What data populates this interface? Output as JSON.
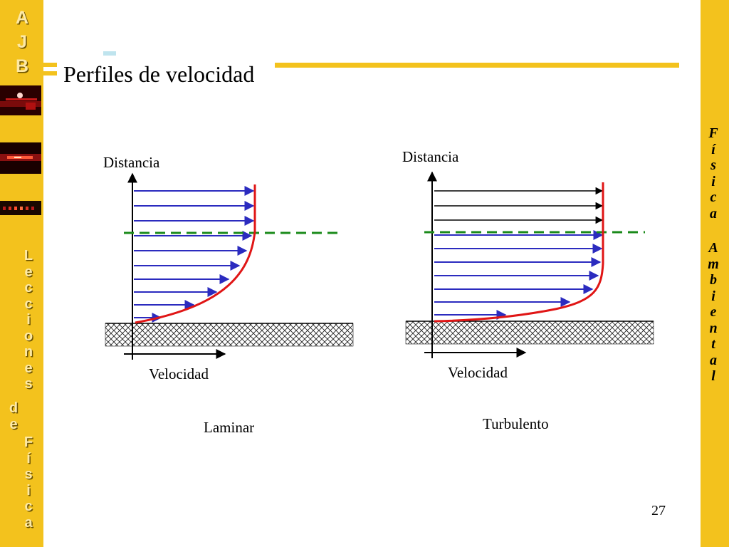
{
  "slide": {
    "title": "Perfiles de velocidad",
    "number": "27",
    "colors": {
      "band": "#f3c21d",
      "accent": "#f3c21d",
      "arrow": "#2b2bbf",
      "profile": "#e01515",
      "boundary": "#1a8a1a"
    }
  },
  "sidebar_left": {
    "logo_letters": [
      "A",
      "J",
      "B"
    ],
    "vertical_text_1": [
      "L",
      "e",
      "c",
      "c",
      "i",
      "o",
      "n",
      "e",
      "s"
    ],
    "vertical_text_2": [
      "d",
      "e"
    ],
    "vertical_text_3": [
      "F",
      "í",
      "s",
      "i",
      "c",
      "a"
    ],
    "thumbnails": [
      "laser-thumbnail",
      "spectrum-thumbnail",
      "spectrum-lines-thumbnail"
    ]
  },
  "sidebar_right": {
    "word1": [
      "F",
      "í",
      "s",
      "i",
      "c",
      "a"
    ],
    "word2": [
      "A",
      "m",
      "b",
      "i",
      "e",
      "n",
      "t",
      "a",
      "l"
    ]
  },
  "diagrams": {
    "laminar": {
      "y_axis_label": "Distancia",
      "x_axis_label": "Velocidad",
      "caption": "Laminar"
    },
    "turbulent": {
      "y_axis_label": "Distancia",
      "x_axis_label": "Velocidad",
      "caption": "Turbulento"
    }
  }
}
